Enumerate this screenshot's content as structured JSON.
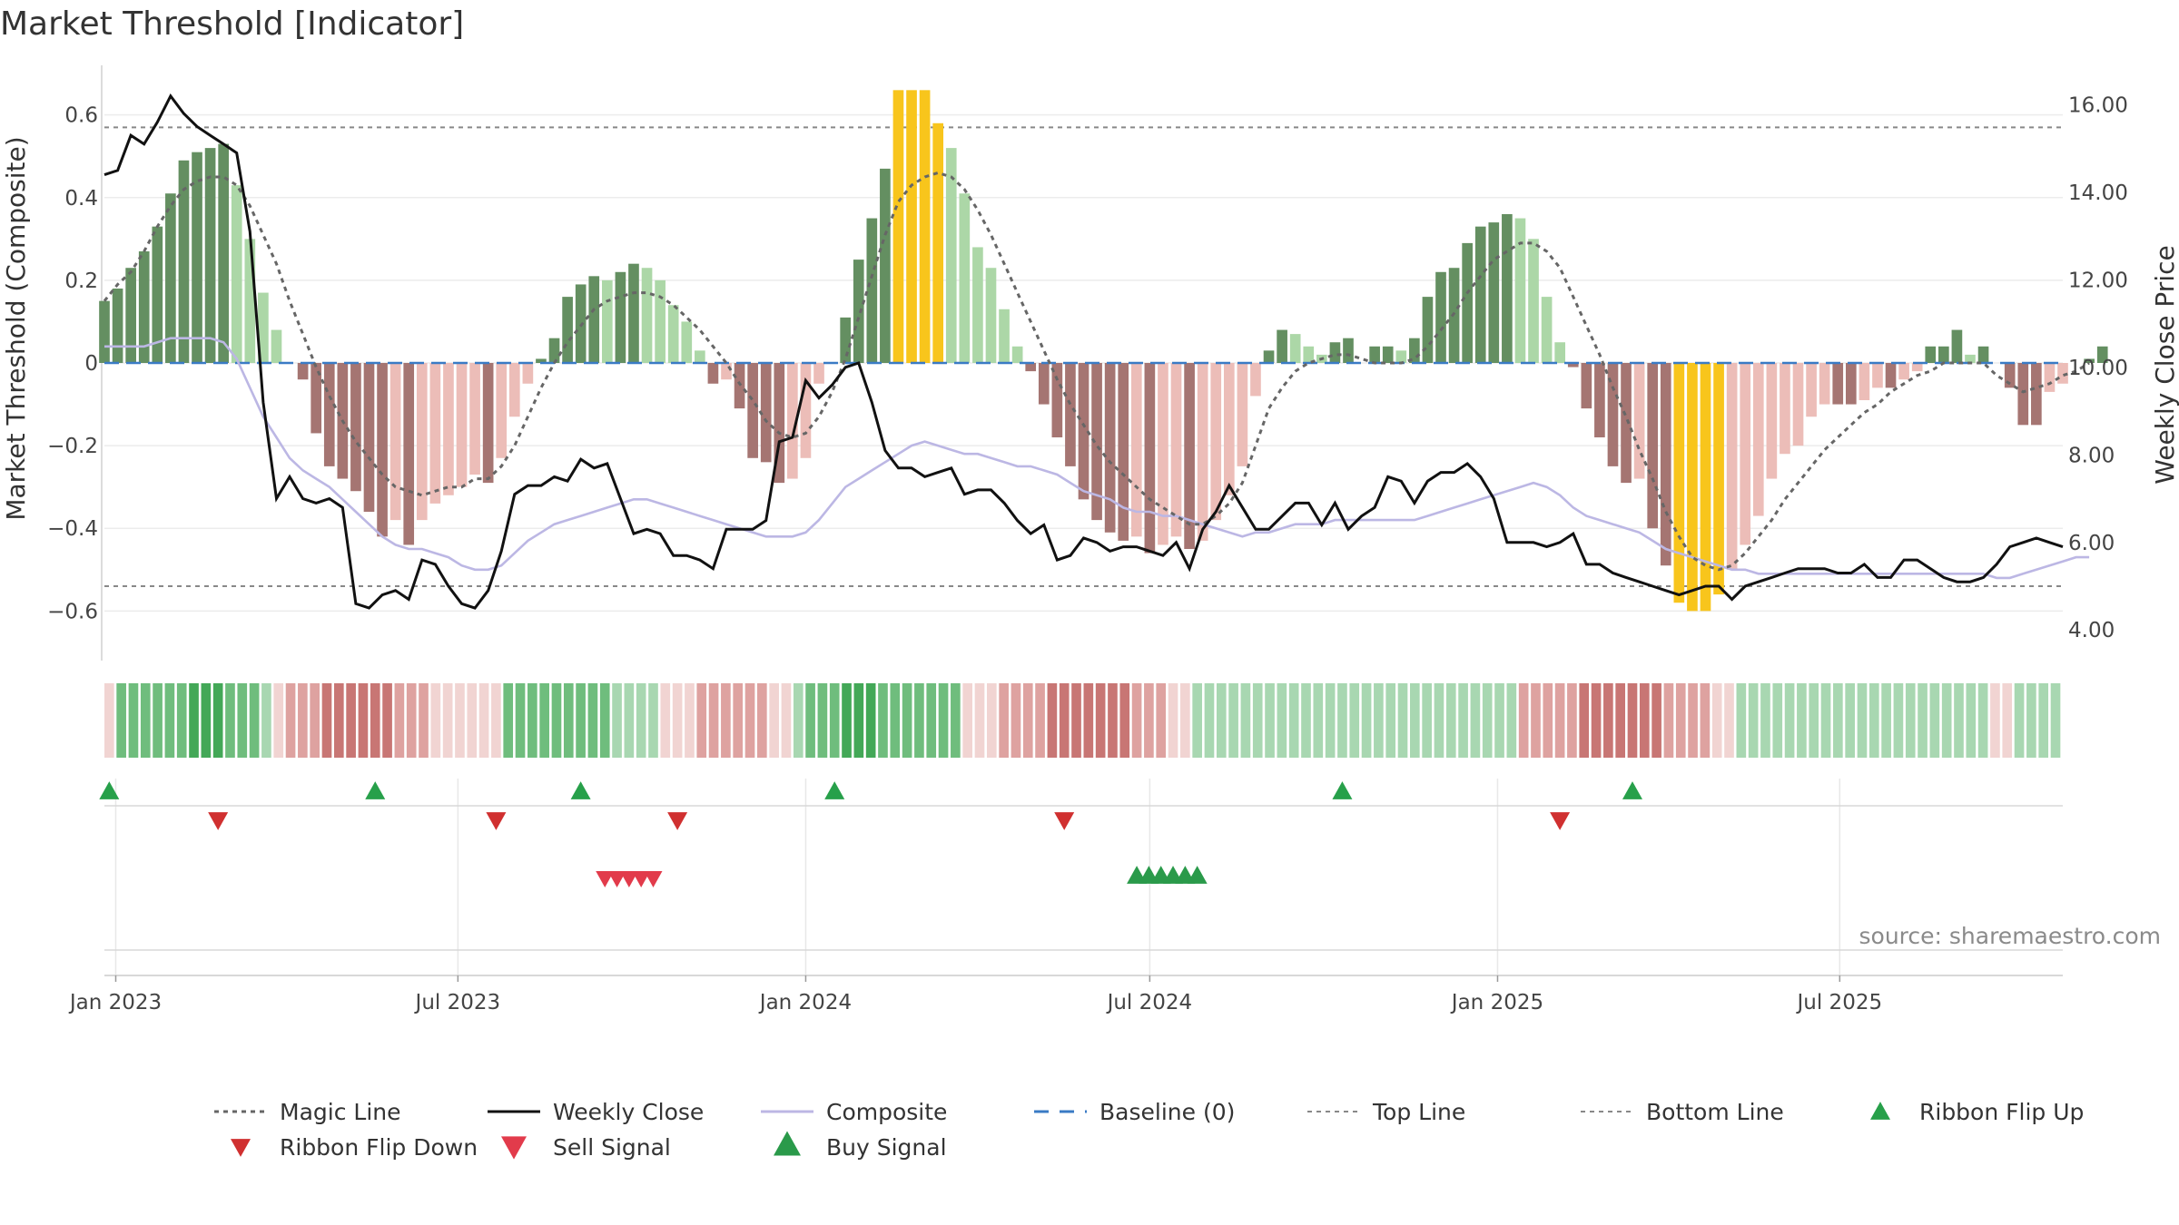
{
  "chart_data": {
    "type": "bar",
    "title": "Market Threshold [Indicator]",
    "ylabel": "Market Threshold (Composite)",
    "y2label": "Weekly Close Price",
    "ylim": [
      -0.72,
      0.72
    ],
    "y2lim": [
      3.3,
      16.9
    ],
    "yticks": [
      0.6,
      0.4,
      0.2,
      0,
      -0.2,
      -0.4,
      -0.6
    ],
    "ytick_labels": [
      "0.6",
      "0.4",
      "0.2",
      "0",
      "−0.2",
      "−0.4",
      "−0.6"
    ],
    "y2ticks": [
      16,
      14,
      12,
      10,
      8,
      6,
      4
    ],
    "y2tick_labels": [
      "16.00",
      "14.00",
      "12.00",
      "10.00",
      "8.00",
      "6.00",
      "4.00"
    ],
    "x_start": "2022-12-26",
    "x_end": "2025-10-27",
    "week_count": 149,
    "xticks": [
      {
        "date": "2023-01-01",
        "label": "Jan 2023"
      },
      {
        "date": "2023-07-01",
        "label": "Jul 2023"
      },
      {
        "date": "2024-01-01",
        "label": "Jan 2024"
      },
      {
        "date": "2024-07-01",
        "label": "Jul 2024"
      },
      {
        "date": "2025-01-01",
        "label": "Jan 2025"
      },
      {
        "date": "2025-07-01",
        "label": "Jul 2025"
      }
    ],
    "top_line": 0.57,
    "bottom_line": -0.54,
    "histogram": [
      0.15,
      0.18,
      0.23,
      0.27,
      0.33,
      0.41,
      0.49,
      0.51,
      0.52,
      0.53,
      0.43,
      0.3,
      0.17,
      0.08,
      0.0,
      -0.04,
      -0.17,
      -0.25,
      -0.28,
      -0.31,
      -0.36,
      -0.42,
      -0.38,
      -0.44,
      -0.38,
      -0.34,
      -0.32,
      -0.3,
      -0.27,
      -0.29,
      -0.23,
      -0.13,
      -0.05,
      0.01,
      0.06,
      0.16,
      0.19,
      0.21,
      0.2,
      0.22,
      0.24,
      0.23,
      0.2,
      0.14,
      0.1,
      0.03,
      -0.05,
      -0.04,
      -0.11,
      -0.23,
      -0.24,
      -0.29,
      -0.28,
      -0.23,
      -0.05,
      0.0,
      0.11,
      0.25,
      0.35,
      0.47,
      0.66,
      0.66,
      0.66,
      0.58,
      0.52,
      0.41,
      0.28,
      0.23,
      0.13,
      0.04,
      -0.02,
      -0.1,
      -0.18,
      -0.25,
      -0.33,
      -0.38,
      -0.41,
      -0.43,
      -0.42,
      -0.46,
      -0.44,
      -0.42,
      -0.45,
      -0.43,
      -0.38,
      -0.32,
      -0.25,
      -0.08,
      0.03,
      0.08,
      0.07,
      0.04,
      0.02,
      0.05,
      0.06,
      0.0,
      0.04,
      0.04,
      0.03,
      0.06,
      0.16,
      0.22,
      0.23,
      0.29,
      0.33,
      0.34,
      0.36,
      0.35,
      0.3,
      0.16,
      0.05,
      -0.01,
      -0.11,
      -0.18,
      -0.25,
      -0.29,
      -0.28,
      -0.4,
      -0.49,
      -0.58,
      -0.6,
      -0.6,
      -0.56,
      -0.5,
      -0.44,
      -0.37,
      -0.28,
      -0.22,
      -0.2,
      -0.13,
      -0.1,
      -0.1,
      -0.1,
      -0.09,
      -0.06,
      -0.06,
      -0.04,
      -0.02,
      0.04,
      0.04,
      0.08,
      0.02,
      0.04,
      0.0,
      -0.06,
      -0.15,
      -0.15,
      -0.07,
      -0.05,
      0.0,
      0.01,
      0.04
    ],
    "magic_line": [
      0.15,
      0.19,
      0.22,
      0.27,
      0.33,
      0.38,
      0.42,
      0.44,
      0.45,
      0.45,
      0.43,
      0.38,
      0.31,
      0.24,
      0.15,
      0.07,
      -0.01,
      -0.08,
      -0.14,
      -0.19,
      -0.23,
      -0.27,
      -0.3,
      -0.31,
      -0.32,
      -0.31,
      -0.3,
      -0.3,
      -0.28,
      -0.28,
      -0.25,
      -0.2,
      -0.13,
      -0.06,
      0.0,
      0.05,
      0.09,
      0.13,
      0.15,
      0.16,
      0.17,
      0.17,
      0.16,
      0.14,
      0.11,
      0.08,
      0.04,
      0.0,
      -0.05,
      -0.09,
      -0.14,
      -0.17,
      -0.18,
      -0.17,
      -0.13,
      -0.07,
      0.01,
      0.11,
      0.21,
      0.31,
      0.39,
      0.43,
      0.45,
      0.46,
      0.45,
      0.42,
      0.37,
      0.31,
      0.24,
      0.17,
      0.1,
      0.03,
      -0.04,
      -0.1,
      -0.15,
      -0.2,
      -0.24,
      -0.27,
      -0.3,
      -0.33,
      -0.35,
      -0.37,
      -0.39,
      -0.39,
      -0.37,
      -0.34,
      -0.29,
      -0.2,
      -0.11,
      -0.06,
      -0.02,
      0.0,
      0.01,
      0.02,
      0.02,
      0.01,
      0.0,
      0.0,
      0.0,
      0.01,
      0.04,
      0.08,
      0.12,
      0.17,
      0.21,
      0.25,
      0.27,
      0.29,
      0.29,
      0.27,
      0.23,
      0.16,
      0.09,
      0.02,
      -0.06,
      -0.13,
      -0.21,
      -0.28,
      -0.36,
      -0.42,
      -0.47,
      -0.49,
      -0.5,
      -0.49,
      -0.46,
      -0.42,
      -0.38,
      -0.33,
      -0.29,
      -0.25,
      -0.21,
      -0.18,
      -0.15,
      -0.12,
      -0.1,
      -0.07,
      -0.05,
      -0.03,
      -0.02,
      0.0,
      0.0,
      0.0,
      0.0,
      -0.03,
      -0.05,
      -0.07,
      -0.06,
      -0.05,
      -0.03,
      -0.02,
      0.0
    ],
    "composite": [
      0.04,
      0.04,
      0.04,
      0.04,
      0.05,
      0.06,
      0.06,
      0.06,
      0.06,
      0.05,
      0.01,
      -0.06,
      -0.13,
      -0.18,
      -0.23,
      -0.26,
      -0.28,
      -0.3,
      -0.33,
      -0.36,
      -0.39,
      -0.42,
      -0.44,
      -0.45,
      -0.45,
      -0.46,
      -0.47,
      -0.49,
      -0.5,
      -0.5,
      -0.49,
      -0.46,
      -0.43,
      -0.41,
      -0.39,
      -0.38,
      -0.37,
      -0.36,
      -0.35,
      -0.34,
      -0.33,
      -0.33,
      -0.34,
      -0.35,
      -0.36,
      -0.37,
      -0.38,
      -0.39,
      -0.4,
      -0.41,
      -0.42,
      -0.42,
      -0.42,
      -0.41,
      -0.38,
      -0.34,
      -0.3,
      -0.28,
      -0.26,
      -0.24,
      -0.22,
      -0.2,
      -0.19,
      -0.2,
      -0.21,
      -0.22,
      -0.22,
      -0.23,
      -0.24,
      -0.25,
      -0.25,
      -0.26,
      -0.27,
      -0.29,
      -0.31,
      -0.32,
      -0.33,
      -0.35,
      -0.36,
      -0.36,
      -0.37,
      -0.37,
      -0.38,
      -0.39,
      -0.4,
      -0.41,
      -0.42,
      -0.41,
      -0.41,
      -0.4,
      -0.39,
      -0.39,
      -0.39,
      -0.38,
      -0.38,
      -0.38,
      -0.38,
      -0.38,
      -0.38,
      -0.38,
      -0.37,
      -0.36,
      -0.35,
      -0.34,
      -0.33,
      -0.32,
      -0.31,
      -0.3,
      -0.29,
      -0.3,
      -0.32,
      -0.35,
      -0.37,
      -0.38,
      -0.39,
      -0.4,
      -0.41,
      -0.43,
      -0.45,
      -0.46,
      -0.47,
      -0.48,
      -0.49,
      -0.5,
      -0.5,
      -0.51,
      -0.51,
      -0.51,
      -0.51,
      -0.51,
      -0.51,
      -0.51,
      -0.51,
      -0.51,
      -0.51,
      -0.51,
      -0.51,
      -0.51,
      -0.51,
      -0.51,
      -0.51,
      -0.51,
      -0.51,
      -0.52,
      -0.52,
      -0.51,
      -0.5,
      -0.49,
      -0.48,
      -0.47,
      -0.47
    ],
    "weekly_close": [
      14.4,
      14.5,
      15.3,
      15.1,
      15.6,
      16.2,
      15.8,
      15.5,
      15.3,
      15.1,
      14.9,
      13.1,
      9.2,
      7.0,
      7.5,
      7.0,
      6.9,
      7.0,
      6.8,
      4.6,
      4.5,
      4.8,
      4.9,
      4.7,
      5.6,
      5.5,
      5.0,
      4.6,
      4.5,
      4.9,
      5.8,
      7.1,
      7.3,
      7.3,
      7.5,
      7.4,
      7.9,
      7.7,
      7.8,
      7.0,
      6.2,
      6.3,
      6.2,
      5.7,
      5.7,
      5.6,
      5.4,
      6.3,
      6.3,
      6.3,
      6.5,
      8.3,
      8.4,
      9.7,
      9.3,
      9.6,
      10.0,
      10.1,
      9.2,
      8.1,
      7.7,
      7.7,
      7.5,
      7.6,
      7.7,
      7.1,
      7.2,
      7.2,
      6.9,
      6.5,
      6.2,
      6.4,
      5.6,
      5.7,
      6.1,
      6.0,
      5.8,
      5.9,
      5.9,
      5.8,
      5.7,
      6.0,
      5.4,
      6.3,
      6.7,
      7.3,
      6.8,
      6.3,
      6.3,
      6.6,
      6.9,
      6.9,
      6.4,
      6.9,
      6.3,
      6.6,
      6.8,
      7.5,
      7.4,
      6.9,
      7.4,
      7.6,
      7.6,
      7.8,
      7.5,
      7.0,
      6.0,
      6.0,
      6.0,
      5.9,
      6.0,
      6.2,
      5.5,
      5.5,
      5.3,
      5.2,
      5.1,
      5.0,
      4.9,
      4.8,
      4.9,
      5.0,
      5.0,
      4.7,
      5.0,
      5.1,
      5.2,
      5.3,
      5.4,
      5.4,
      5.4,
      5.3,
      5.3,
      5.5,
      5.2,
      5.2,
      5.6,
      5.6,
      5.4,
      5.2,
      5.1,
      5.1,
      5.2,
      5.5,
      5.9,
      6.0,
      6.1,
      6.0,
      5.9
    ]
  },
  "ribbon": {
    "levels": [
      -1,
      2,
      2,
      2,
      2,
      2,
      2,
      3,
      3,
      3,
      2,
      2,
      2,
      1,
      -1,
      -2,
      -2,
      -2,
      -3,
      -3,
      -3,
      -3,
      -3,
      -3,
      -2,
      -2,
      -2,
      -1,
      -1,
      -1,
      -1,
      -1,
      -1,
      2,
      2,
      2,
      2,
      2,
      2,
      2,
      2,
      2,
      1,
      1,
      1,
      1,
      -1,
      -1,
      -1,
      -2,
      -2,
      -2,
      -2,
      -2,
      -2,
      -1,
      -1,
      1,
      2,
      2,
      2,
      3,
      3,
      3,
      2,
      2,
      2,
      2,
      2,
      2,
      2,
      -1,
      -1,
      -1,
      -2,
      -2,
      -2,
      -2,
      -3,
      -3,
      -3,
      -3,
      -3,
      -3,
      -3,
      -2,
      -2,
      -2,
      -1,
      -1,
      1,
      1,
      1,
      1,
      1,
      1,
      1,
      1,
      1,
      1,
      1,
      1,
      1,
      1,
      1,
      1,
      1,
      1,
      1,
      1,
      1,
      1,
      1,
      1,
      1,
      1,
      1,
      -2,
      -2,
      -2,
      -2,
      -2,
      -3,
      -3,
      -3,
      -3,
      -3,
      -3,
      -3,
      -2,
      -2,
      -2,
      -2,
      -1,
      -1,
      1,
      1,
      1,
      1,
      1,
      1,
      1,
      1,
      1,
      1,
      1,
      1,
      1,
      1,
      1,
      1,
      1,
      1,
      1,
      1,
      1,
      -1,
      -1,
      1,
      1,
      1,
      1
    ],
    "colors": {
      "pos3": "#43a857",
      "pos2": "#6fbd7d",
      "pos1": "#a8d7b1",
      "neg1": "#f1d4d2",
      "neg2": "#dea2a0",
      "neg3": "#c87674"
    }
  },
  "signals": {
    "flip_up": [
      0,
      22,
      39,
      60,
      102,
      126
    ],
    "flip_down": [
      9,
      32,
      47,
      79,
      120
    ],
    "sell": [
      41,
      42,
      43,
      44,
      45
    ],
    "buy": [
      85,
      86,
      87,
      88,
      89,
      90
    ]
  },
  "colors": {
    "hist_pos_dark": "#648f61",
    "hist_pos_light": "#acd7a7",
    "hist_neg_dark": "#a57572",
    "hist_neg_light": "#ecbdb8",
    "hist_extreme": "#f8c51c",
    "magic_line": "#666666",
    "weekly_close": "#111111",
    "composite": "#bcb7e4",
    "baseline": "#3a7bc5",
    "threshold": "#888888",
    "flip_up": "#27a04a",
    "flip_down": "#d03030",
    "sell_signal": "#e23b4b",
    "buy_signal": "#2a9a4a"
  },
  "source": "source: sharemaestro.com",
  "legend": [
    {
      "key": "magic",
      "label": "Magic Line"
    },
    {
      "key": "close",
      "label": "Weekly Close"
    },
    {
      "key": "composite",
      "label": "Composite"
    },
    {
      "key": "baseline",
      "label": "Baseline (0)"
    },
    {
      "key": "top",
      "label": "Top Line"
    },
    {
      "key": "bottom",
      "label": "Bottom Line"
    },
    {
      "key": "flipup",
      "label": "Ribbon Flip Up"
    },
    {
      "key": "flipdown",
      "label": "Ribbon Flip Down"
    },
    {
      "key": "sell",
      "label": "Sell Signal"
    },
    {
      "key": "buy",
      "label": "Buy Signal"
    }
  ]
}
